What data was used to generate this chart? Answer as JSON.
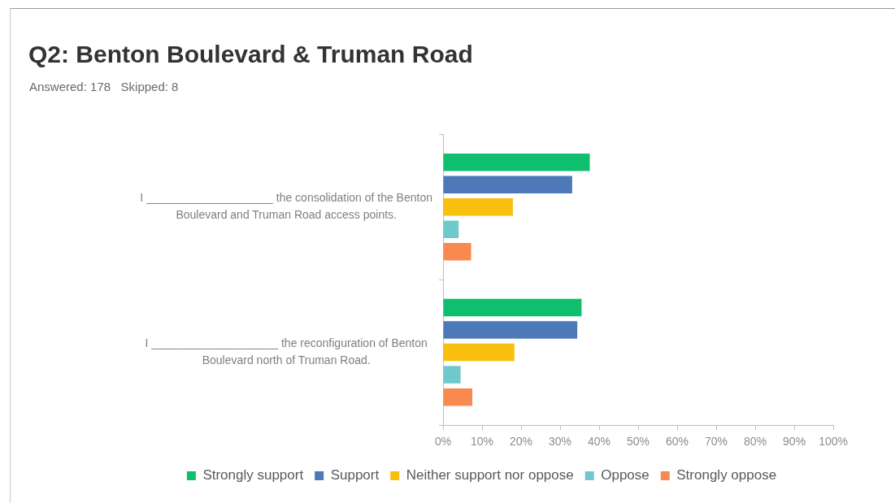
{
  "chart_data": {
    "type": "bar",
    "orientation": "horizontal",
    "title": "Q2: Benton Boulevard & Truman Road",
    "subtitle": "Answered: 178   Skipped: 8",
    "categories": [
      "I ____________________ the consolidation of the Benton Boulevard and Truman Road access points.",
      "I ____________________ the reconfiguration of Benton Boulevard north of Truman Road."
    ],
    "series": [
      {
        "name": "Strongly support",
        "color": "#0fbf6f",
        "values": [
          37.6,
          35.5
        ]
      },
      {
        "name": "Support",
        "color": "#4e79b8",
        "values": [
          33.1,
          34.4
        ]
      },
      {
        "name": "Neither support nor oppose",
        "color": "#f8bf0e",
        "values": [
          17.9,
          18.3
        ]
      },
      {
        "name": "Oppose",
        "color": "#6fc9cc",
        "values": [
          4.0,
          4.5
        ]
      },
      {
        "name": "Strongly oppose",
        "color": "#f98a4f",
        "values": [
          7.2,
          7.5
        ]
      }
    ],
    "xlim": [
      0,
      100
    ],
    "xticks": [
      {
        "value": 0,
        "label": "0%"
      },
      {
        "value": 10,
        "label": "10%"
      },
      {
        "value": 20,
        "label": "20%"
      },
      {
        "value": 30,
        "label": "30%"
      },
      {
        "value": 40,
        "label": "40%"
      },
      {
        "value": 50,
        "label": "50%"
      },
      {
        "value": 60,
        "label": "60%"
      },
      {
        "value": 70,
        "label": "70%"
      },
      {
        "value": 80,
        "label": "80%"
      },
      {
        "value": 90,
        "label": "90%"
      },
      {
        "value": 100,
        "label": "100%"
      }
    ],
    "legend": "bottom"
  }
}
